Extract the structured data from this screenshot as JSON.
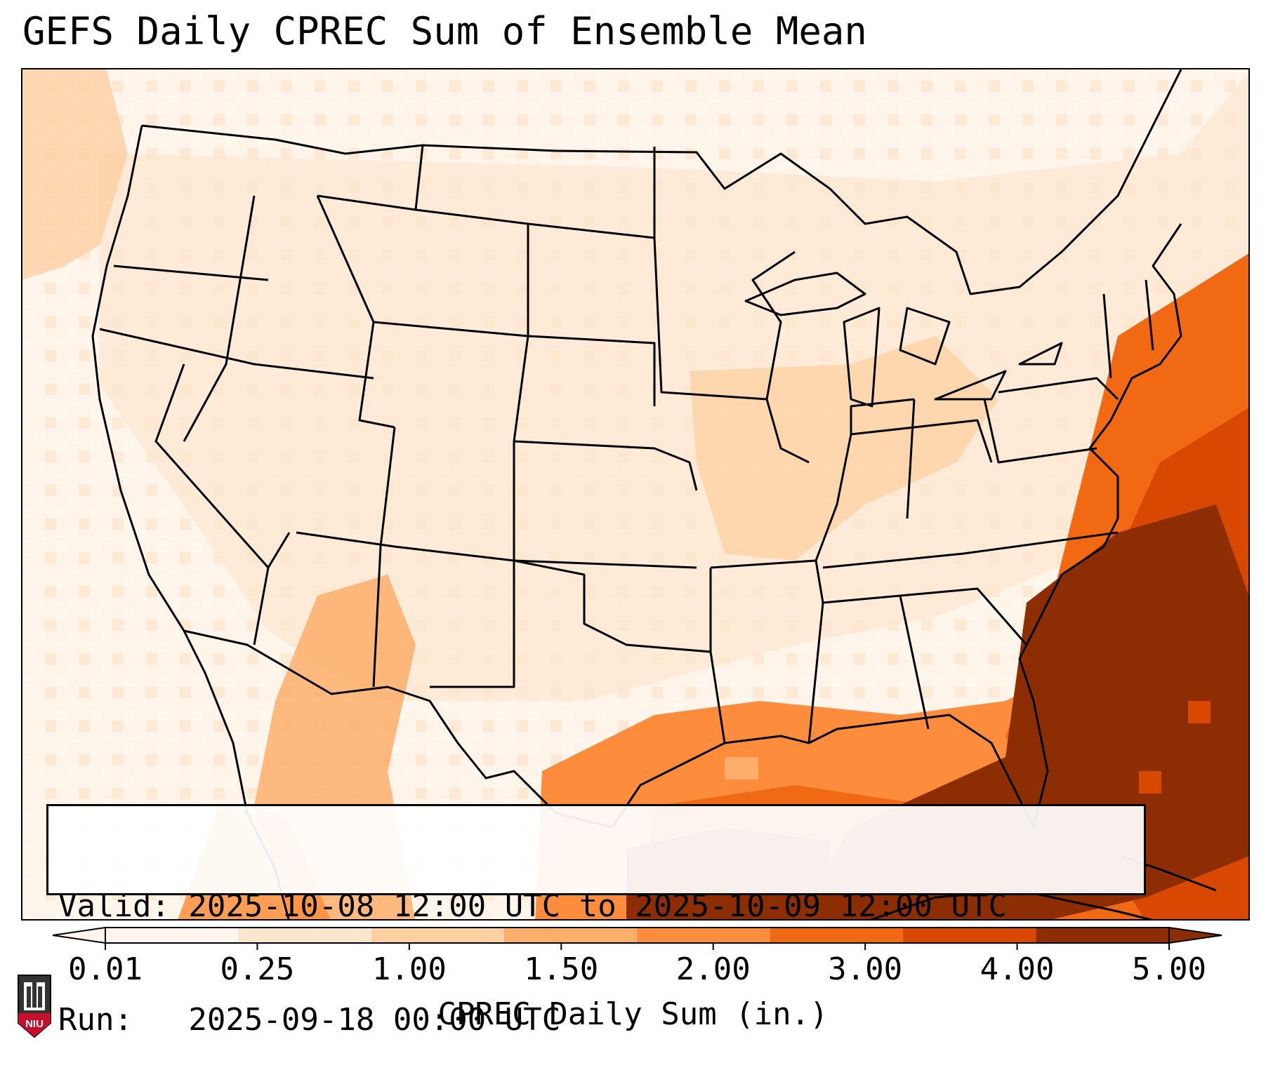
{
  "title": "GEFS Daily CPREC Sum of Ensemble Mean",
  "info": {
    "valid_line": "Valid: 2025-10-08 12:00 UTC to 2025-10-09 12:00 UTC",
    "run_line": "Run:   2025-09-18 00:00 UTC"
  },
  "colorbar": {
    "label": "CPREC Daily Sum (in.)",
    "ticks": [
      "0.01",
      "0.25",
      "1.00",
      "1.50",
      "2.00",
      "3.00",
      "4.00",
      "5.00"
    ],
    "colors": [
      "#fff5eb",
      "#fee6ce",
      "#fdd0a2",
      "#fdae6b",
      "#fd8d3c",
      "#f16913",
      "#d94801",
      "#8c2d04"
    ],
    "extend": "both"
  },
  "logo": {
    "text": "NIU",
    "colors": {
      "accent": "#c8102e",
      "tower": "#333333"
    }
  },
  "map": {
    "projection": "lambert-conformal",
    "region": "CONUS",
    "features": [
      "state-borders",
      "country-borders",
      "coastlines",
      "great-lakes"
    ],
    "field_colors": {
      "background": "#fff4e9",
      "light": "#fee6ce",
      "medium": "#fdd0a2",
      "orange": "#fdae6b",
      "darkorange": "#f16913",
      "deep": "#d94801",
      "max": "#8c2d04"
    }
  }
}
